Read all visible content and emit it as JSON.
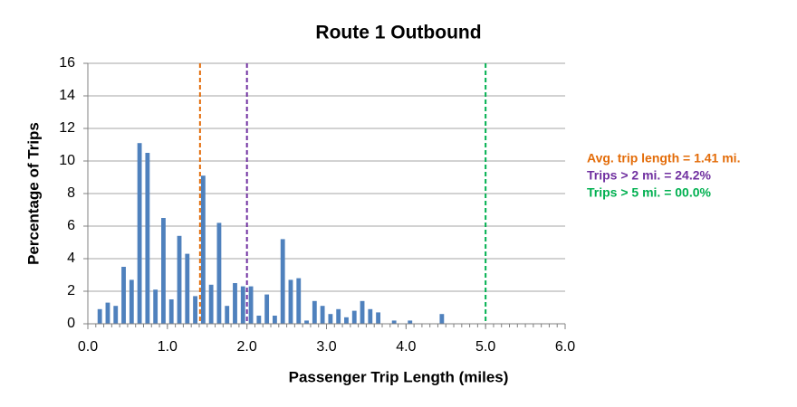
{
  "chart_data": {
    "type": "histogram",
    "title": "Route 1 Outbound",
    "xlabel": "Passenger Trip Length (miles)",
    "ylabel": "Percentage of Trips",
    "bins": [
      0.1,
      0.2,
      0.3,
      0.4,
      0.5,
      0.6,
      0.7,
      0.8,
      0.9,
      1.0,
      1.1,
      1.2,
      1.3,
      1.4,
      1.5,
      1.6,
      1.7,
      1.8,
      1.9,
      2.0,
      2.1,
      2.2,
      2.3,
      2.4,
      2.5,
      2.6,
      2.7,
      2.8,
      2.9,
      3.0,
      3.1,
      3.2,
      3.3,
      3.4,
      3.5,
      3.6,
      3.7,
      3.8,
      3.9,
      4.0,
      4.1,
      4.2,
      4.3,
      4.4,
      4.5,
      4.6,
      4.7,
      4.8,
      4.9,
      5.0,
      5.1,
      5.2,
      5.3,
      5.4,
      5.5,
      5.6,
      5.7,
      5.8,
      5.9,
      6.0
    ],
    "values": [
      0.9,
      1.3,
      1.1,
      3.5,
      2.7,
      11.1,
      10.5,
      2.1,
      6.5,
      1.5,
      5.4,
      4.3,
      1.7,
      9.1,
      2.4,
      6.2,
      1.1,
      2.5,
      2.3,
      2.3,
      0.5,
      1.8,
      0.5,
      5.2,
      2.7,
      2.8,
      0.2,
      1.4,
      1.1,
      0.6,
      0.9,
      0.4,
      0.8,
      1.4,
      0.9,
      0.7,
      0,
      0.2,
      0,
      0.2,
      0,
      0,
      0,
      0.6,
      0,
      0,
      0,
      0,
      0,
      0,
      0,
      0,
      0,
      0,
      0,
      0,
      0,
      0,
      0
    ],
    "color": "#4f81bd",
    "xlim": [
      0,
      6
    ],
    "xticks": [
      {
        "value": 0,
        "label": "0.0"
      },
      {
        "value": 1,
        "label": "1.0"
      },
      {
        "value": 2,
        "label": "2.0"
      },
      {
        "value": 3,
        "label": "3.0"
      },
      {
        "value": 4,
        "label": "4.0"
      },
      {
        "value": 5,
        "label": "5.0"
      },
      {
        "value": 6,
        "label": "6.0"
      }
    ],
    "ylim": [
      0,
      16
    ],
    "yticks": [
      0,
      2,
      4,
      6,
      8,
      10,
      12,
      14,
      16
    ],
    "grid": true,
    "vlines": [
      {
        "x": 1.41,
        "color": "#e36c09",
        "label": "Avg. trip length = 1.41 mi."
      },
      {
        "x": 2,
        "color": "#7030a0",
        "label": "Trips > 2 mi. = 24.2%"
      },
      {
        "x": 5,
        "color": "#00b050",
        "label": "Trips > 5 mi. = 00.0%"
      }
    ]
  }
}
